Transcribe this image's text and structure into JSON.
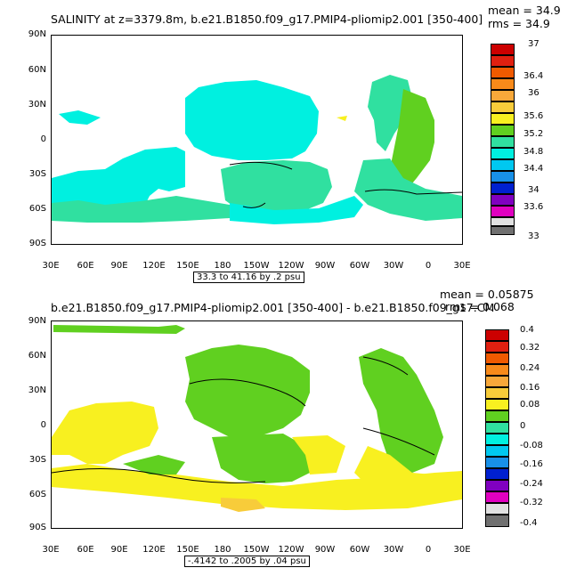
{
  "panels": [
    {
      "title": "SALINITY at z=3379.8m, b.e21.B1850.f09_g17.PMIP4-pliomip2.001 [350-400]",
      "stats": [
        "mean = 34.9",
        "rms = 34.9"
      ],
      "range_note": "33.3 to 41.16 by .2 psu",
      "y_ticks": [
        "90N",
        "60N",
        "30N",
        "0",
        "30S",
        "60S",
        "90S"
      ],
      "x_ticks": [
        "30E",
        "60E",
        "90E",
        "120E",
        "150E",
        "180",
        "150W",
        "120W",
        "90W",
        "60W",
        "30W",
        "0",
        "30E"
      ],
      "colorbar": {
        "labels": [
          "37",
          "36.4",
          "36",
          "35.6",
          "35.2",
          "34.8",
          "34.4",
          "34",
          "33.6",
          "33"
        ],
        "colors": [
          "#cc0000",
          "#e02010",
          "#f05a00",
          "#f88a1a",
          "#f8a83a",
          "#f8cc3a",
          "#f8f020",
          "#60d020",
          "#30e0a0",
          "#00f0e0",
          "#00c8f0",
          "#1890e8",
          "#0020d0",
          "#8000c0",
          "#e000c0",
          "#e0e0e0",
          "#707070"
        ]
      },
      "map": {
        "cells": [
          [
            "#30e0a0",
            "#60d020",
            "#00f0e0"
          ]
        ]
      }
    },
    {
      "title": "b.e21.B1850.f09_g17.PMIP4-pliomip2.001 [350-400] - b.e21.B1850.f09_g17.CM",
      "stats": [
        "mean = 0.05875",
        "rms = 0.068"
      ],
      "range_note": "-.4142 to .2005 by .04 psu",
      "y_ticks": [
        "90N",
        "60N",
        "30N",
        "0",
        "30S",
        "60S",
        "90S"
      ],
      "x_ticks": [
        "30E",
        "60E",
        "90E",
        "120E",
        "150E",
        "180",
        "150W",
        "120W",
        "90W",
        "60W",
        "30W",
        "0",
        "30E"
      ],
      "colorbar": {
        "labels": [
          "0.4",
          "0.32",
          "0.24",
          "0.16",
          "0.08",
          "0",
          "-0.08",
          "-0.16",
          "-0.24",
          "-0.32",
          "-0.4"
        ],
        "colors": [
          "#cc0000",
          "#e02010",
          "#f05a00",
          "#f88a1a",
          "#f8a83a",
          "#f8cc3a",
          "#f8f020",
          "#60d020",
          "#30e0a0",
          "#00f0e0",
          "#00c8f0",
          "#1890e8",
          "#0020d0",
          "#8000c0",
          "#e000c0",
          "#e0e0e0",
          "#707070"
        ]
      }
    }
  ]
}
